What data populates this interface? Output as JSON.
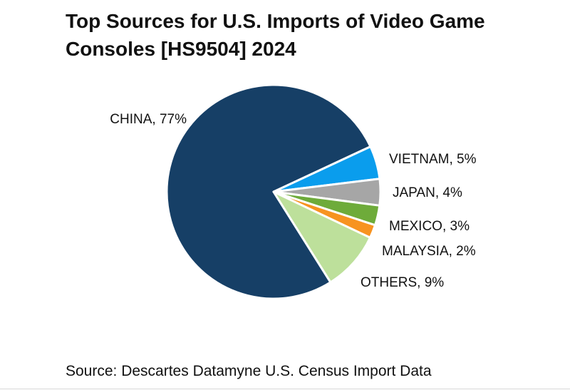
{
  "chart_data": {
    "type": "pie",
    "title": "Top Sources for U.S. Imports of Video Game Consoles [HS9504] 2024",
    "slices": [
      {
        "label": "CHINA, 77%",
        "name": "CHINA",
        "value": 77,
        "color": "#163f66"
      },
      {
        "label": "VIETNAM, 5%",
        "name": "VIETNAM",
        "value": 5,
        "color": "#0a9ded"
      },
      {
        "label": "JAPAN, 4%",
        "name": "JAPAN",
        "value": 4,
        "color": "#a6a6a6"
      },
      {
        "label": "MEXICO, 3%",
        "name": "MEXICO",
        "value": 3,
        "color": "#6eab3a"
      },
      {
        "label": "MALAYSIA, 2%",
        "name": "MALAYSIA",
        "value": 2,
        "color": "#f79320"
      },
      {
        "label": "OTHERS, 9%",
        "name": "OTHERS",
        "value": 9,
        "color": "#bde09b"
      }
    ]
  },
  "source": "Source: Descartes Datamyne U.S. Census Import Data"
}
